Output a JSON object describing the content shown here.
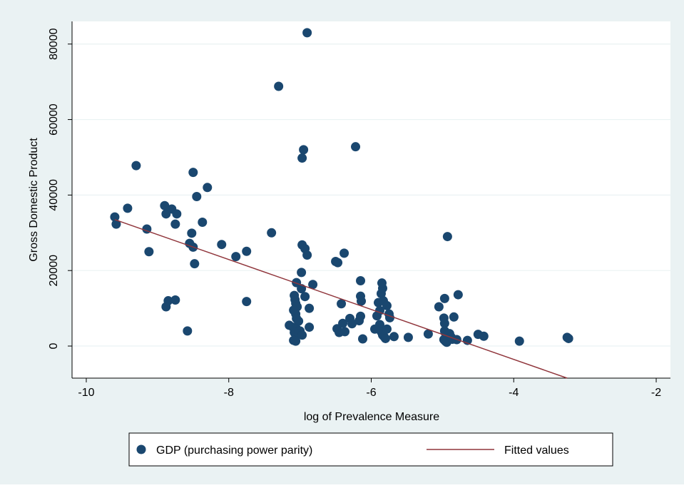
{
  "chart_data": {
    "type": "scatter",
    "title": "",
    "xlabel": "log of Prevalence Measure",
    "ylabel": "Gross Domestic Product",
    "xlim": [
      -10.2,
      -1.8
    ],
    "ylim": [
      -8500,
      86000
    ],
    "x_ticks": [
      -10,
      -8,
      -6,
      -4,
      -2
    ],
    "y_ticks": [
      0,
      20000,
      40000,
      60000,
      80000
    ],
    "x_tick_labels": [
      "-10",
      "-8",
      "-6",
      "-4",
      "-2"
    ],
    "y_tick_labels": [
      "0",
      "20000",
      "40000",
      "60000",
      "80000"
    ],
    "grid": "horizontal",
    "legend_position": "bottom",
    "colors": {
      "outer_background": "#eaf2f3",
      "plot_background": "#ffffff",
      "grid": "#eaf2f3",
      "points": "#1a476f",
      "fit_line": "#90353b"
    },
    "series": [
      {
        "name": "GDP (purchasing power parity)",
        "kind": "scatter",
        "points": [
          [
            -6.9,
            83000
          ],
          [
            -7.3,
            68800
          ],
          [
            -6.95,
            52000
          ],
          [
            -6.97,
            49800
          ],
          [
            -6.22,
            52800
          ],
          [
            -9.3,
            47800
          ],
          [
            -8.5,
            46000
          ],
          [
            -8.3,
            42000
          ],
          [
            -8.45,
            39600
          ],
          [
            -9.6,
            34200
          ],
          [
            -9.58,
            32300
          ],
          [
            -9.42,
            36500
          ],
          [
            -9.15,
            31000
          ],
          [
            -9.12,
            25000
          ],
          [
            -8.9,
            37200
          ],
          [
            -8.88,
            35000
          ],
          [
            -8.8,
            36300
          ],
          [
            -8.75,
            32300
          ],
          [
            -8.73,
            35000
          ],
          [
            -8.37,
            32800
          ],
          [
            -8.52,
            29900
          ],
          [
            -8.55,
            27200
          ],
          [
            -8.5,
            26200
          ],
          [
            -8.48,
            21800
          ],
          [
            -8.1,
            26900
          ],
          [
            -7.9,
            23700
          ],
          [
            -7.75,
            25100
          ],
          [
            -7.75,
            11800
          ],
          [
            -8.85,
            12000
          ],
          [
            -8.75,
            12200
          ],
          [
            -8.88,
            10400
          ],
          [
            -8.58,
            4000
          ],
          [
            -7.4,
            30000
          ],
          [
            -6.97,
            26800
          ],
          [
            -6.93,
            25800
          ],
          [
            -6.9,
            24100
          ],
          [
            -6.5,
            22400
          ],
          [
            -6.47,
            22100
          ],
          [
            -6.38,
            24600
          ],
          [
            -6.98,
            19500
          ],
          [
            -7.05,
            16800
          ],
          [
            -6.82,
            16300
          ],
          [
            -7.08,
            13400
          ],
          [
            -7.07,
            12300
          ],
          [
            -7.06,
            11300
          ],
          [
            -7.04,
            10400
          ],
          [
            -7.09,
            9500
          ],
          [
            -7.06,
            8500
          ],
          [
            -7.05,
            7300
          ],
          [
            -7.02,
            6600
          ],
          [
            -7.15,
            5500
          ],
          [
            -7.1,
            5000
          ],
          [
            -7.05,
            4600
          ],
          [
            -7.0,
            4000
          ],
          [
            -7.08,
            3600
          ],
          [
            -7.02,
            3300
          ],
          [
            -6.97,
            2900
          ],
          [
            -7.09,
            1500
          ],
          [
            -7.06,
            1300
          ],
          [
            -6.93,
            13100
          ],
          [
            -6.98,
            15200
          ],
          [
            -6.87,
            10000
          ],
          [
            -6.87,
            5000
          ],
          [
            -6.42,
            11200
          ],
          [
            -6.48,
            4600
          ],
          [
            -6.45,
            3600
          ],
          [
            -6.37,
            3800
          ],
          [
            -6.4,
            6000
          ],
          [
            -6.3,
            7300
          ],
          [
            -6.27,
            5900
          ],
          [
            -6.17,
            6700
          ],
          [
            -6.15,
            17300
          ],
          [
            -6.15,
            13200
          ],
          [
            -6.14,
            11900
          ],
          [
            -6.15,
            7900
          ],
          [
            -6.12,
            1900
          ],
          [
            -5.9,
            11500
          ],
          [
            -5.88,
            9400
          ],
          [
            -5.92,
            8000
          ],
          [
            -5.86,
            13900
          ],
          [
            -5.84,
            15300
          ],
          [
            -5.85,
            16700
          ],
          [
            -5.83,
            12000
          ],
          [
            -5.78,
            10700
          ],
          [
            -5.75,
            8500
          ],
          [
            -5.74,
            7500
          ],
          [
            -5.88,
            5700
          ],
          [
            -5.86,
            3800
          ],
          [
            -5.84,
            2900
          ],
          [
            -5.82,
            2500
          ],
          [
            -5.8,
            2000
          ],
          [
            -5.95,
            4500
          ],
          [
            -5.78,
            4500
          ],
          [
            -5.68,
            2500
          ],
          [
            -5.48,
            2300
          ],
          [
            -5.2,
            3200
          ],
          [
            -5.05,
            10400
          ],
          [
            -4.97,
            12600
          ],
          [
            -4.93,
            29000
          ],
          [
            -4.78,
            13600
          ],
          [
            -4.84,
            7700
          ],
          [
            -4.98,
            7400
          ],
          [
            -4.97,
            6000
          ],
          [
            -4.97,
            4000
          ],
          [
            -4.96,
            3500
          ],
          [
            -4.94,
            3000
          ],
          [
            -4.92,
            2500
          ],
          [
            -4.95,
            2000
          ],
          [
            -4.98,
            1700
          ],
          [
            -4.96,
            1300
          ],
          [
            -4.94,
            1000
          ],
          [
            -4.9,
            3300
          ],
          [
            -4.88,
            2400
          ],
          [
            -4.86,
            1800
          ],
          [
            -4.8,
            1700
          ],
          [
            -4.65,
            1500
          ],
          [
            -4.5,
            3100
          ],
          [
            -4.42,
            2600
          ],
          [
            -3.92,
            1300
          ],
          [
            -3.25,
            2300
          ],
          [
            -3.23,
            2000
          ]
        ]
      },
      {
        "name": "Fitted values",
        "kind": "line",
        "points": [
          [
            -9.6,
            33500
          ],
          [
            -3.25,
            -8500
          ]
        ]
      }
    ]
  }
}
